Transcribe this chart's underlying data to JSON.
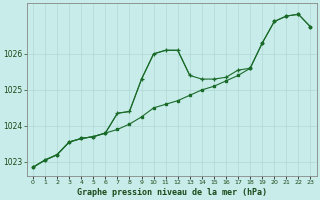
{
  "title": "Graphe pression niveau de la mer (hPa)",
  "background_color": "#c8ece9",
  "grid_color": "#b0d8d4",
  "line_color": "#1a6b2a",
  "xlim": [
    -0.5,
    23.5
  ],
  "ylim": [
    1022.6,
    1027.4
  ],
  "yticks": [
    1023,
    1024,
    1025,
    1026
  ],
  "xticks": [
    0,
    1,
    2,
    3,
    4,
    5,
    6,
    7,
    8,
    9,
    10,
    11,
    12,
    13,
    14,
    15,
    16,
    17,
    18,
    19,
    20,
    21,
    22,
    23
  ],
  "series1_x": [
    0,
    1,
    2,
    3,
    4,
    5,
    6,
    7,
    8,
    9,
    10,
    11,
    12,
    13,
    14,
    15,
    16,
    17,
    18,
    19,
    20,
    21,
    22,
    23
  ],
  "series1_y": [
    1022.85,
    1023.05,
    1023.2,
    1023.55,
    1023.65,
    1023.7,
    1023.8,
    1023.9,
    1024.05,
    1024.25,
    1024.5,
    1024.6,
    1024.7,
    1024.85,
    1025.0,
    1025.1,
    1025.25,
    1025.4,
    1025.6,
    1026.3,
    1026.9,
    1027.05,
    1027.1,
    1026.75
  ],
  "series2_x": [
    0,
    1,
    2,
    3,
    4,
    5,
    6,
    7,
    8,
    9,
    10,
    11,
    12,
    13,
    14,
    15,
    16,
    17,
    18,
    19,
    20,
    21,
    22,
    23
  ],
  "series2_y": [
    1022.85,
    1023.05,
    1023.2,
    1023.55,
    1023.65,
    1023.7,
    1023.8,
    1024.35,
    1024.4,
    1025.3,
    1026.0,
    1026.1,
    1026.1,
    1025.4,
    1025.3,
    1025.3,
    1025.35,
    1025.55,
    1025.6,
    1026.3,
    1026.9,
    1027.05,
    1027.1,
    1026.75
  ],
  "series3_x": [
    0,
    1,
    2,
    3,
    4,
    5,
    6,
    7,
    8,
    9,
    10,
    11,
    12,
    13
  ],
  "series3_y": [
    1022.85,
    1023.05,
    1023.2,
    1023.55,
    1023.65,
    1023.7,
    1023.8,
    1024.35,
    1024.4,
    1025.3,
    1026.0,
    1026.1,
    1026.1,
    1025.4
  ],
  "tick_font_size": 5.5,
  "label_font_size": 6.0
}
